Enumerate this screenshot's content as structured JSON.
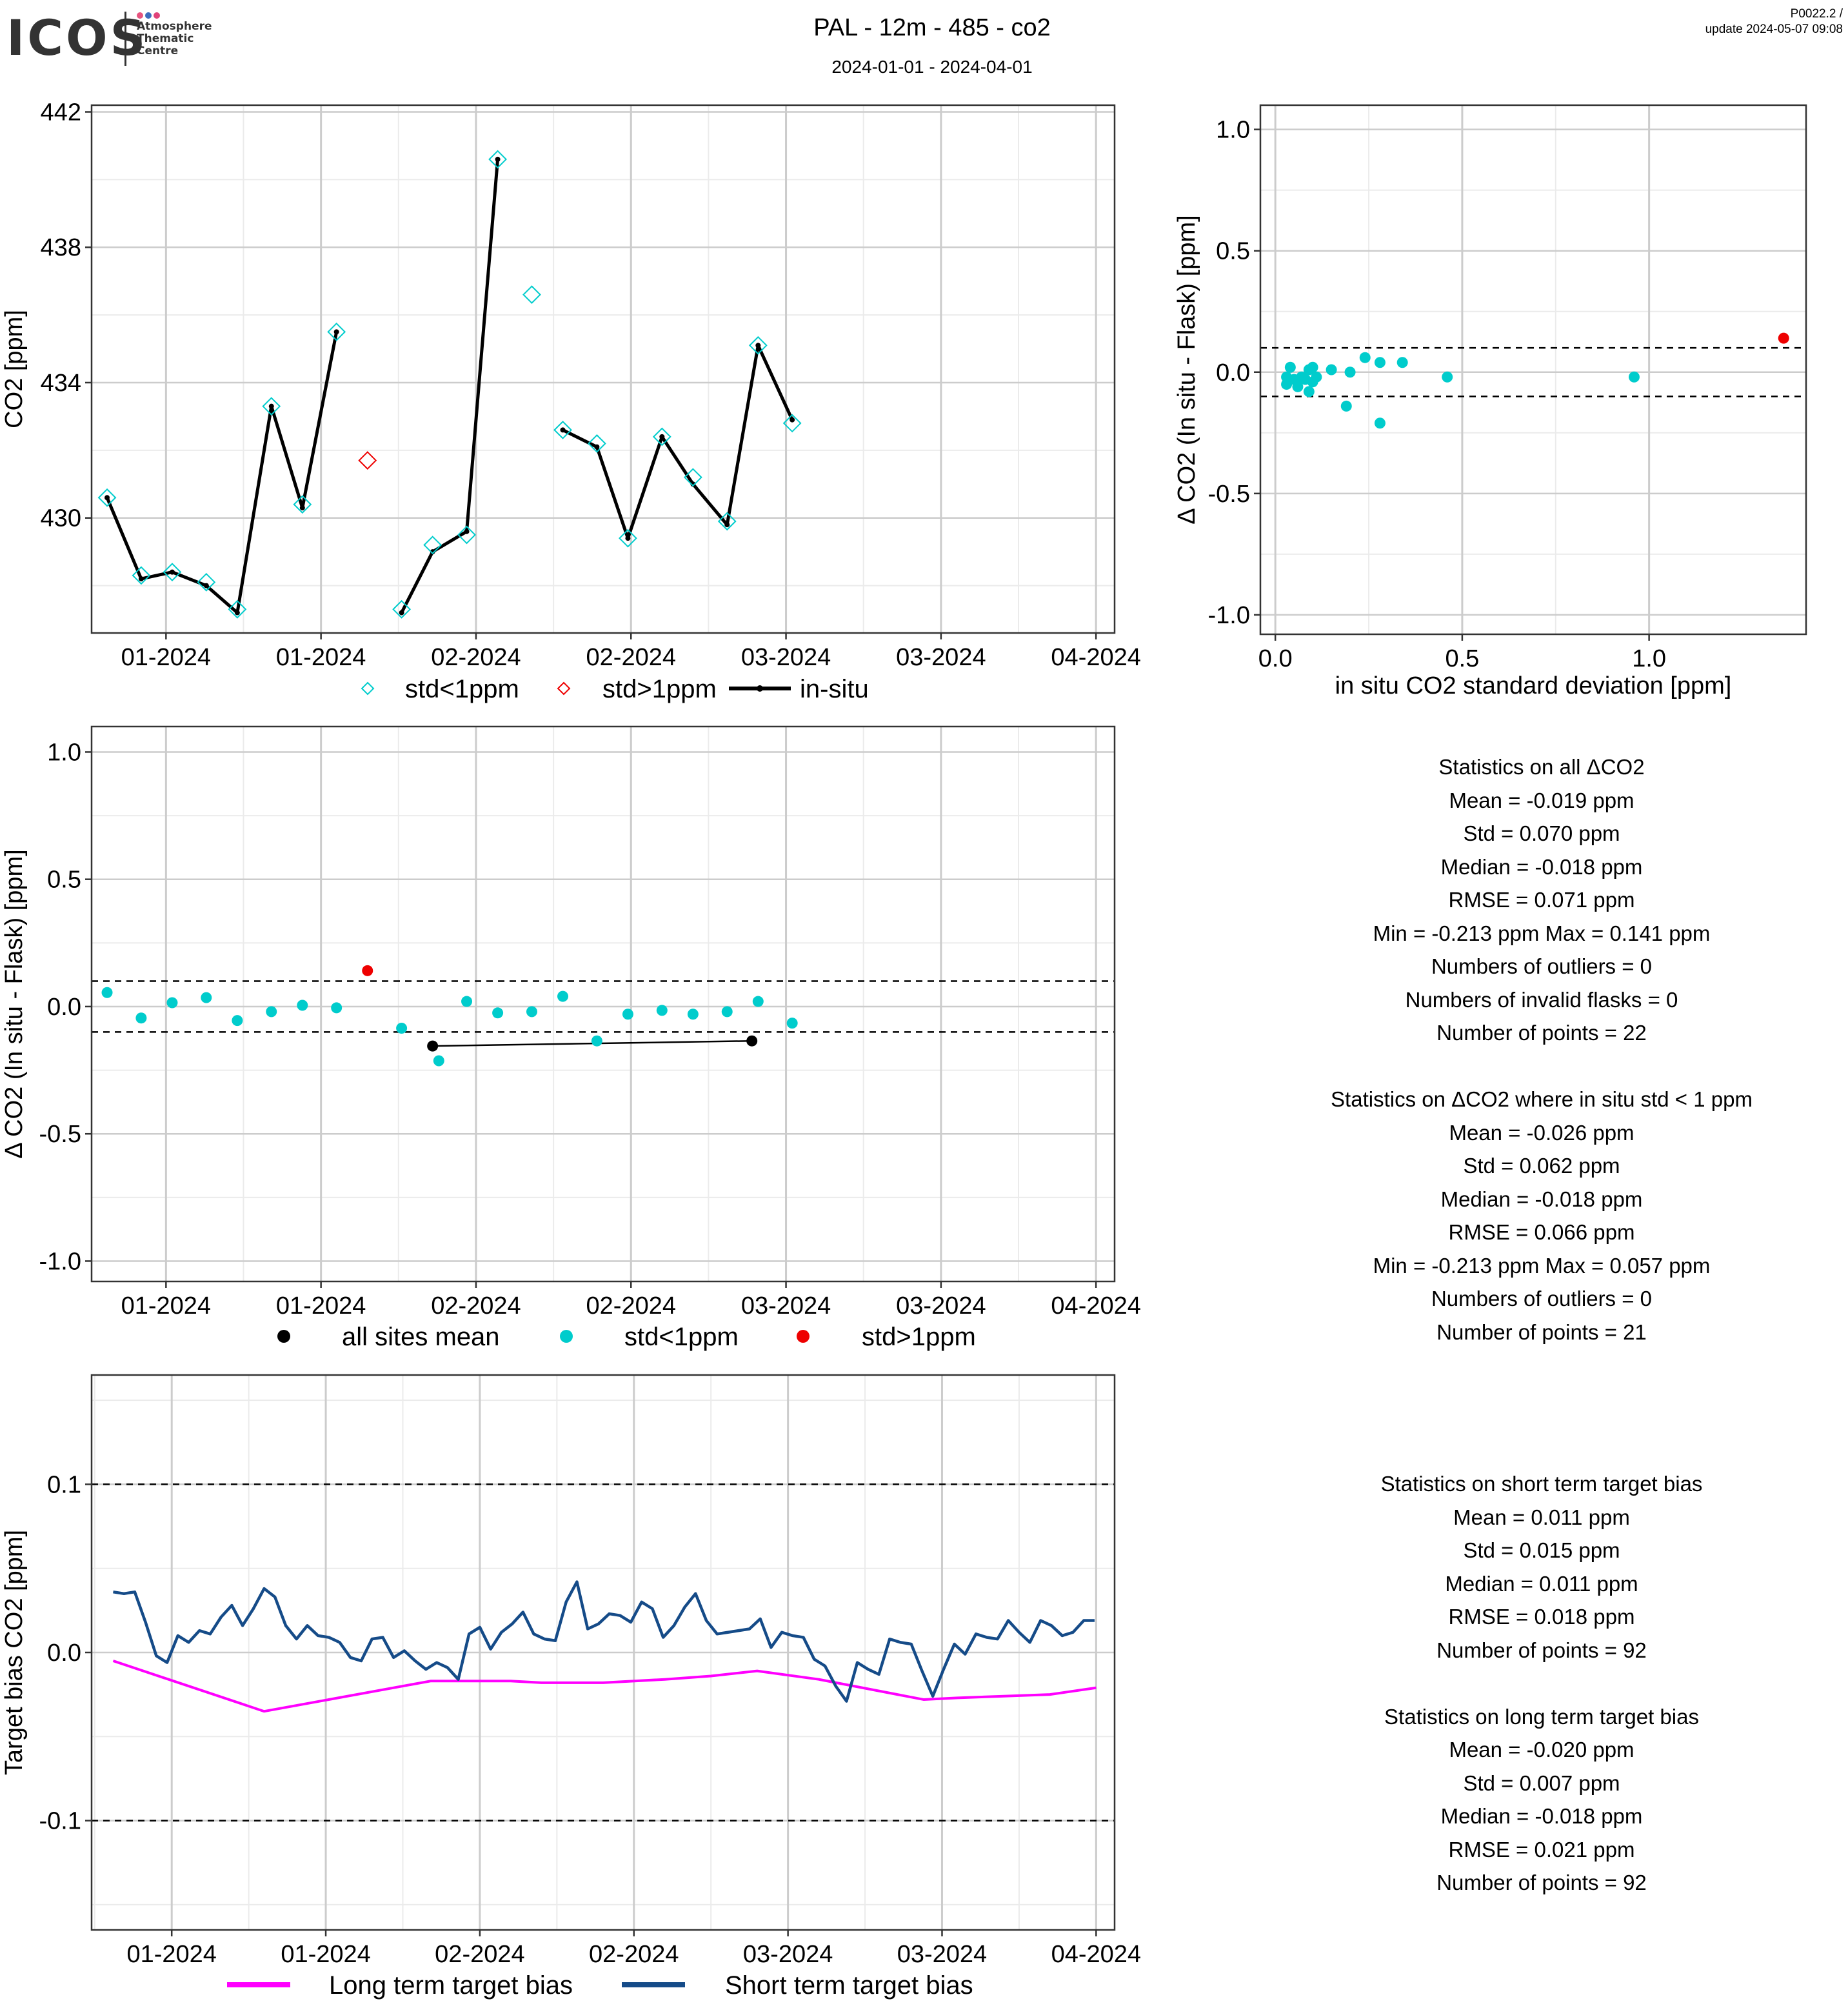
{
  "header": {
    "logo_text": "ICOS",
    "logo_sub": [
      "Atmosphere",
      "Thematic",
      "Centre"
    ],
    "logo_colors": [
      "#e7547f",
      "#3d6dbd",
      "#e0437a"
    ],
    "title": "PAL - 12m - 485 - co2",
    "subtitle": "2024-01-01 - 2024-04-01",
    "version_line1": "P0022.2 /",
    "version_line2": "update  2024-05-07 09:08"
  },
  "colors": {
    "cyan": "#00cccc",
    "red": "#ee0000",
    "black": "#000000",
    "magenta": "#ff00ff",
    "navy": "#154b88",
    "grid_major": "#cccccc",
    "grid_minor": "#ebebeb"
  },
  "chart_data": [
    {
      "id": "co2-timeseries",
      "type": "line",
      "xlabel": "",
      "ylabel": "CO2 [ppm]",
      "xlim": [
        -2.4,
        30.6
      ],
      "ylim": [
        426.6,
        442.2
      ],
      "xtick_values": [
        0,
        5,
        10,
        15,
        20,
        25,
        30
      ],
      "xtick_labels": [
        "01-2024",
        "01-2024",
        "02-2024",
        "02-2024",
        "03-2024",
        "03-2024",
        "04-2024"
      ],
      "ytick_values": [
        430,
        434,
        438,
        442
      ],
      "ytick_labels": [
        "430",
        "434",
        "438",
        "442"
      ],
      "grid": true,
      "x": [
        -1.9,
        -0.8,
        0.2,
        1.3,
        2.3,
        3.4,
        4.4,
        5.5,
        6.5,
        7.6,
        8.6,
        9.7,
        10.7,
        11.8,
        12.8,
        13.9,
        14.9,
        16.0,
        17.0,
        18.1,
        19.1,
        20.2,
        21.2
      ],
      "in_situ": [
        430.6,
        428.2,
        428.4,
        428.0,
        427.2,
        433.3,
        430.3,
        435.5,
        null,
        427.2,
        429.0,
        429.6,
        440.6,
        null,
        432.6,
        432.1,
        429.4,
        432.4,
        431.0,
        429.8,
        435.1,
        432.9,
        null
      ],
      "series": [
        {
          "name": "std<1ppm",
          "marker": "diamond",
          "x": [
            -1.9,
            -0.8,
            0.2,
            1.3,
            2.3,
            3.4,
            4.4,
            5.5,
            7.6,
            8.6,
            9.7,
            10.7,
            11.8,
            12.8,
            13.9,
            14.9,
            16.0,
            17.0,
            18.1,
            19.1,
            20.2,
            21.2
          ],
          "y": [
            430.6,
            428.3,
            428.4,
            428.1,
            427.3,
            433.3,
            430.4,
            435.5,
            427.3,
            429.2,
            429.5,
            440.6,
            436.6,
            432.6,
            432.2,
            429.4,
            432.4,
            431.2,
            429.9,
            435.1,
            432.8,
            null
          ]
        },
        {
          "name": "std>1ppm",
          "marker": "diamond",
          "x": [
            6.5
          ],
          "y": [
            431.7
          ]
        },
        {
          "name": "in-situ",
          "marker": "line"
        }
      ],
      "legend": "bottom"
    },
    {
      "id": "delta-vs-std",
      "type": "scatter",
      "xlabel": "in situ CO2 standard deviation [ppm]",
      "ylabel": "Δ CO2 (In situ - Flask) [ppm]",
      "xlim": [
        -0.04,
        1.42
      ],
      "ylim": [
        -1.08,
        1.1
      ],
      "xtick_values": [
        0.0,
        0.5,
        1.0
      ],
      "xtick_labels": [
        "0.0",
        "0.5",
        "1.0"
      ],
      "ytick_values": [
        1.0,
        0.5,
        0.0,
        -0.5,
        -1.0
      ],
      "ytick_labels": [
        "1.0",
        "0.5",
        "0.0",
        "-0.5",
        "-1.0"
      ],
      "hlines": [
        0.1,
        -0.1
      ],
      "grid": true,
      "series": [
        {
          "name": "std<1ppm",
          "x": [
            0.03,
            0.04,
            0.03,
            0.06,
            0.07,
            0.08,
            0.09,
            0.1,
            0.1,
            0.09,
            0.11,
            0.15,
            0.19,
            0.2,
            0.24,
            0.28,
            0.28,
            0.34,
            0.46,
            0.96,
            0.05
          ],
          "y": [
            -0.05,
            0.02,
            -0.02,
            -0.06,
            -0.02,
            -0.03,
            0.01,
            0.02,
            -0.04,
            -0.08,
            -0.02,
            0.01,
            -0.14,
            0.0,
            0.06,
            0.04,
            -0.21,
            0.04,
            -0.02,
            -0.02,
            -0.03
          ]
        },
        {
          "name": "std>1ppm",
          "x": [
            1.36
          ],
          "y": [
            0.14
          ]
        }
      ]
    },
    {
      "id": "delta-timeseries",
      "type": "scatter",
      "xlabel": "",
      "ylabel": "Δ CO2 (In situ - Flask) [ppm]",
      "xlim": [
        -2.4,
        30.6
      ],
      "ylim": [
        -1.08,
        1.1
      ],
      "xtick_values": [
        0,
        5,
        10,
        15,
        20,
        25,
        30
      ],
      "xtick_labels": [
        "01-2024",
        "01-2024",
        "02-2024",
        "02-2024",
        "03-2024",
        "03-2024",
        "04-2024"
      ],
      "ytick_values": [
        1.0,
        0.5,
        0.0,
        -0.5,
        -1.0
      ],
      "ytick_labels": [
        "1.0",
        "0.5",
        "0.0",
        "-0.5",
        "-1.0"
      ],
      "hlines": [
        0.1,
        -0.1
      ],
      "grid": true,
      "series": [
        {
          "name": "all sites mean",
          "x": [
            8.6,
            18.9
          ],
          "y": [
            -0.155,
            -0.135
          ]
        },
        {
          "name": "std<1ppm",
          "x": [
            -1.9,
            -0.8,
            0.2,
            1.3,
            2.3,
            3.4,
            4.4,
            5.5,
            7.6,
            8.8,
            9.7,
            10.7,
            11.8,
            12.8,
            13.9,
            14.9,
            16.0,
            17.0,
            18.1,
            19.1,
            20.2
          ],
          "y": [
            0.055,
            -0.045,
            0.015,
            0.035,
            -0.055,
            -0.02,
            0.005,
            -0.005,
            -0.085,
            -0.213,
            0.02,
            -0.025,
            -0.02,
            0.04,
            -0.135,
            -0.03,
            -0.015,
            -0.03,
            -0.02,
            0.02,
            -0.065
          ]
        },
        {
          "name": "std>1ppm",
          "x": [
            6.5
          ],
          "y": [
            0.141
          ]
        }
      ],
      "legend": "bottom"
    },
    {
      "id": "target-bias",
      "type": "line",
      "xlabel": "",
      "ylabel": "Target bias CO2 [ppm]",
      "xlim": [
        -2.6,
        30.6
      ],
      "ylim": [
        -0.165,
        0.165
      ],
      "xtick_values": [
        0,
        5,
        10,
        15,
        20,
        25,
        30
      ],
      "xtick_labels": [
        "01-2024",
        "01-2024",
        "02-2024",
        "02-2024",
        "03-2024",
        "03-2024",
        "04-2024"
      ],
      "ytick_values": [
        0.1,
        0.0,
        -0.1
      ],
      "ytick_labels": [
        "0.1",
        "0.0",
        "-0.1"
      ],
      "hlines": [
        0.1,
        -0.1
      ],
      "grid": true,
      "series": [
        {
          "name": "Long term target bias",
          "x": [
            -1.9,
            3.0,
            8.4,
            10.0,
            11.0,
            12.0,
            14.0,
            16.0,
            17.5,
            19.0,
            21.0,
            24.4,
            25.5,
            27.0,
            28.5,
            30.0
          ],
          "y": [
            -0.005,
            -0.035,
            -0.017,
            -0.017,
            -0.017,
            -0.018,
            -0.018,
            -0.016,
            -0.014,
            -0.011,
            -0.016,
            -0.028,
            -0.027,
            -0.026,
            -0.025,
            -0.021
          ]
        },
        {
          "name": "Short term target bias",
          "x_start": -1.9,
          "x_step": 0.35,
          "y": [
            0.036,
            0.035,
            0.036,
            0.018,
            -0.002,
            -0.006,
            0.01,
            0.006,
            0.013,
            0.011,
            0.021,
            0.028,
            0.016,
            0.026,
            0.038,
            0.033,
            0.016,
            0.008,
            0.016,
            0.01,
            0.009,
            0.006,
            -0.003,
            -0.005,
            0.008,
            0.009,
            -0.003,
            0.001,
            -0.005,
            -0.01,
            -0.006,
            -0.009,
            -0.016,
            0.011,
            0.015,
            0.002,
            0.012,
            0.017,
            0.024,
            0.011,
            0.008,
            0.007,
            0.03,
            0.042,
            0.014,
            0.017,
            0.023,
            0.022,
            0.018,
            0.03,
            0.026,
            0.009,
            0.016,
            0.027,
            0.035,
            0.019,
            0.011,
            0.012,
            0.013,
            0.014,
            0.02,
            0.003,
            0.012,
            0.01,
            0.009,
            -0.004,
            -0.008,
            -0.02,
            -0.029,
            -0.006,
            -0.01,
            -0.013,
            0.008,
            0.006,
            0.005,
            -0.011,
            -0.026,
            -0.01,
            0.005,
            -0.001,
            0.011,
            0.009,
            0.008,
            0.019,
            0.012,
            0.006,
            0.019,
            0.016,
            0.01,
            0.012,
            0.019,
            0.019
          ]
        }
      ],
      "legend": "bottom"
    }
  ],
  "legends": {
    "p1": [
      "std<1ppm",
      "std>1ppm",
      "in-situ"
    ],
    "p3": [
      "all sites mean",
      "std<1ppm",
      "std>1ppm"
    ],
    "p4": [
      "Long term target bias",
      "Short term target bias"
    ]
  },
  "stats_all": [
    "Statistics on all ΔCO2",
    "Mean =  -0.019 ppm",
    "Std =  0.070 ppm",
    "Median =  -0.018 ppm",
    "RMSE =  0.071 ppm",
    "Min =  -0.213 ppm Max =  0.141 ppm",
    "Numbers of outliers =  0",
    "Numbers of invalid flasks =  0",
    "Number of points =  22",
    "",
    "Statistics on ΔCO2 where in situ std < 1 ppm",
    "Mean =  -0.026 ppm",
    "Std =  0.062 ppm",
    "Median =  -0.018 ppm",
    "RMSE =  0.066 ppm",
    "Min =  -0.213 ppm Max =  0.057 ppm",
    "Numbers of outliers =  0",
    "Number of points =  21"
  ],
  "stats_target": [
    "Statistics on short term target bias",
    "Mean =  0.011 ppm",
    "Std =  0.015 ppm",
    "Median =  0.011 ppm",
    "RMSE =  0.018 ppm",
    "Number of points =  92",
    "",
    "Statistics on long term target bias",
    "Mean =  -0.020 ppm",
    "Std =  0.007 ppm",
    "Median =  -0.018 ppm",
    "RMSE =  0.021 ppm",
    "Number of points =  92"
  ]
}
